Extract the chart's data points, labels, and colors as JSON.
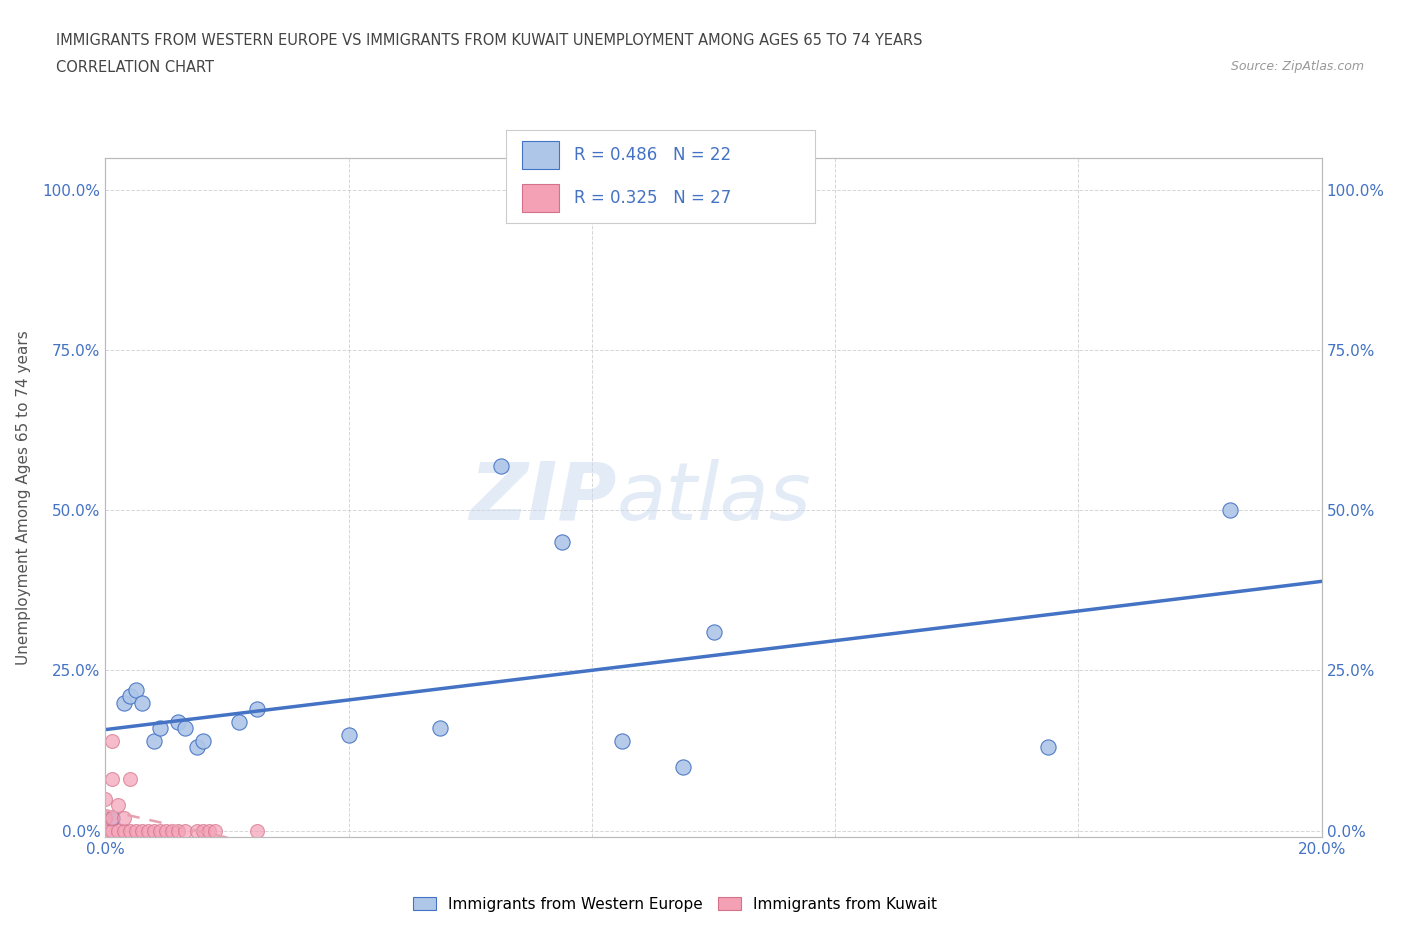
{
  "title_line1": "IMMIGRANTS FROM WESTERN EUROPE VS IMMIGRANTS FROM KUWAIT UNEMPLOYMENT AMONG AGES 65 TO 74 YEARS",
  "title_line2": "CORRELATION CHART",
  "source_text": "Source: ZipAtlas.com",
  "ylabel": "Unemployment Among Ages 65 to 74 years",
  "watermark_part1": "ZIP",
  "watermark_part2": "atlas",
  "xlim": [
    0.0,
    0.2
  ],
  "ylim": [
    -0.01,
    1.05
  ],
  "xticks": [
    0.0,
    0.04,
    0.08,
    0.12,
    0.16,
    0.2
  ],
  "xticklabels": [
    "0.0%",
    "",
    "",
    "",
    "",
    "20.0%"
  ],
  "yticks": [
    0.0,
    0.25,
    0.5,
    0.75,
    1.0
  ],
  "yticklabels": [
    "0.0%",
    "25.0%",
    "50.0%",
    "75.0%",
    "100.0%"
  ],
  "r_western": 0.486,
  "n_western": 22,
  "r_kuwait": 0.325,
  "n_kuwait": 27,
  "color_western": "#aec6e8",
  "color_kuwait": "#f4a0b5",
  "color_line_western": "#4472c4",
  "color_line_kuwait": "#e8a0b0",
  "western_x": [
    0.001,
    0.003,
    0.004,
    0.005,
    0.006,
    0.008,
    0.009,
    0.012,
    0.013,
    0.015,
    0.016,
    0.022,
    0.025,
    0.04,
    0.055,
    0.065,
    0.075,
    0.085,
    0.095,
    0.1,
    0.155,
    0.185
  ],
  "western_y": [
    0.02,
    0.2,
    0.21,
    0.22,
    0.2,
    0.14,
    0.16,
    0.17,
    0.16,
    0.13,
    0.14,
    0.17,
    0.19,
    0.15,
    0.16,
    0.57,
    0.45,
    0.14,
    0.1,
    0.31,
    0.13,
    0.5
  ],
  "kuwait_x": [
    0.0,
    0.0,
    0.0,
    0.001,
    0.001,
    0.001,
    0.001,
    0.002,
    0.002,
    0.003,
    0.003,
    0.004,
    0.004,
    0.005,
    0.006,
    0.007,
    0.008,
    0.009,
    0.01,
    0.011,
    0.012,
    0.013,
    0.015,
    0.016,
    0.017,
    0.018,
    0.025
  ],
  "kuwait_y": [
    0.0,
    0.02,
    0.05,
    0.0,
    0.02,
    0.08,
    0.14,
    0.0,
    0.04,
    0.0,
    0.02,
    0.0,
    0.08,
    0.0,
    0.0,
    0.0,
    0.0,
    0.0,
    0.0,
    0.0,
    0.0,
    0.0,
    0.0,
    0.0,
    0.0,
    0.0,
    0.0
  ],
  "bg_color": "#ffffff",
  "grid_color": "#cccccc",
  "title_color": "#555555",
  "tick_color": "#4472c4",
  "legend_box_color": "#f0f4ff"
}
